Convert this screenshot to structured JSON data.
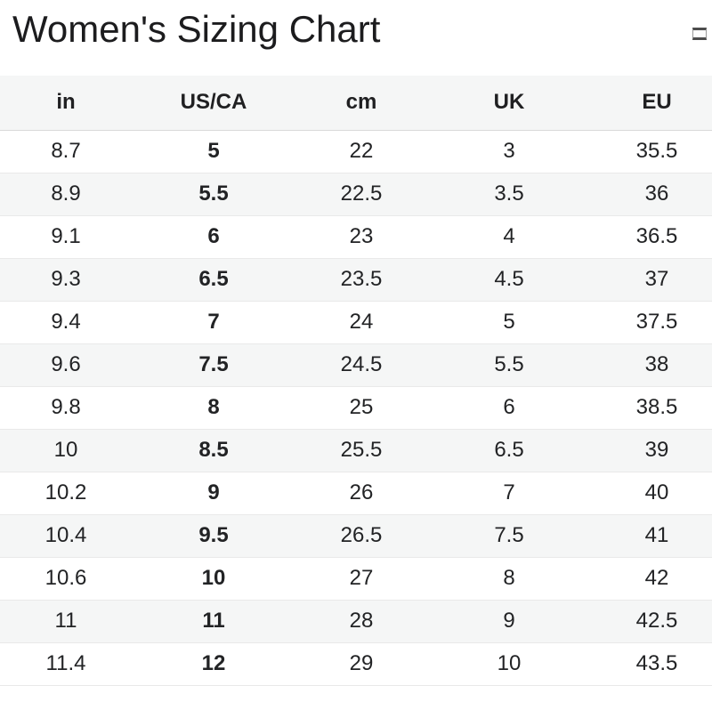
{
  "page": {
    "title": "Women's Sizing Chart",
    "corner_icon": "empty-box-glyph"
  },
  "colors": {
    "header_bg": "#f5f6f6",
    "stripe_bg": "#f5f6f6",
    "row_border": "#e9e9e9",
    "header_border": "#d9d9d9",
    "text": "#222222"
  },
  "chart_data": {
    "type": "table",
    "title": "Women's Sizing Chart",
    "columns": [
      "in",
      "US/CA",
      "cm",
      "UK",
      "EU"
    ],
    "bold_column": "US/CA",
    "bold_column_index": 1,
    "stripe_pattern": "even-rows-gray",
    "rows": [
      [
        "8.7",
        "5",
        "22",
        "3",
        "35.5"
      ],
      [
        "8.9",
        "5.5",
        "22.5",
        "3.5",
        "36"
      ],
      [
        "9.1",
        "6",
        "23",
        "4",
        "36.5"
      ],
      [
        "9.3",
        "6.5",
        "23.5",
        "4.5",
        "37"
      ],
      [
        "9.4",
        "7",
        "24",
        "5",
        "37.5"
      ],
      [
        "9.6",
        "7.5",
        "24.5",
        "5.5",
        "38"
      ],
      [
        "9.8",
        "8",
        "25",
        "6",
        "38.5"
      ],
      [
        "10",
        "8.5",
        "25.5",
        "6.5",
        "39"
      ],
      [
        "10.2",
        "9",
        "26",
        "7",
        "40"
      ],
      [
        "10.4",
        "9.5",
        "26.5",
        "7.5",
        "41"
      ],
      [
        "10.6",
        "10",
        "27",
        "8",
        "42"
      ],
      [
        "11",
        "11",
        "28",
        "9",
        "42.5"
      ],
      [
        "11.4",
        "12",
        "29",
        "10",
        "43.5"
      ]
    ]
  }
}
